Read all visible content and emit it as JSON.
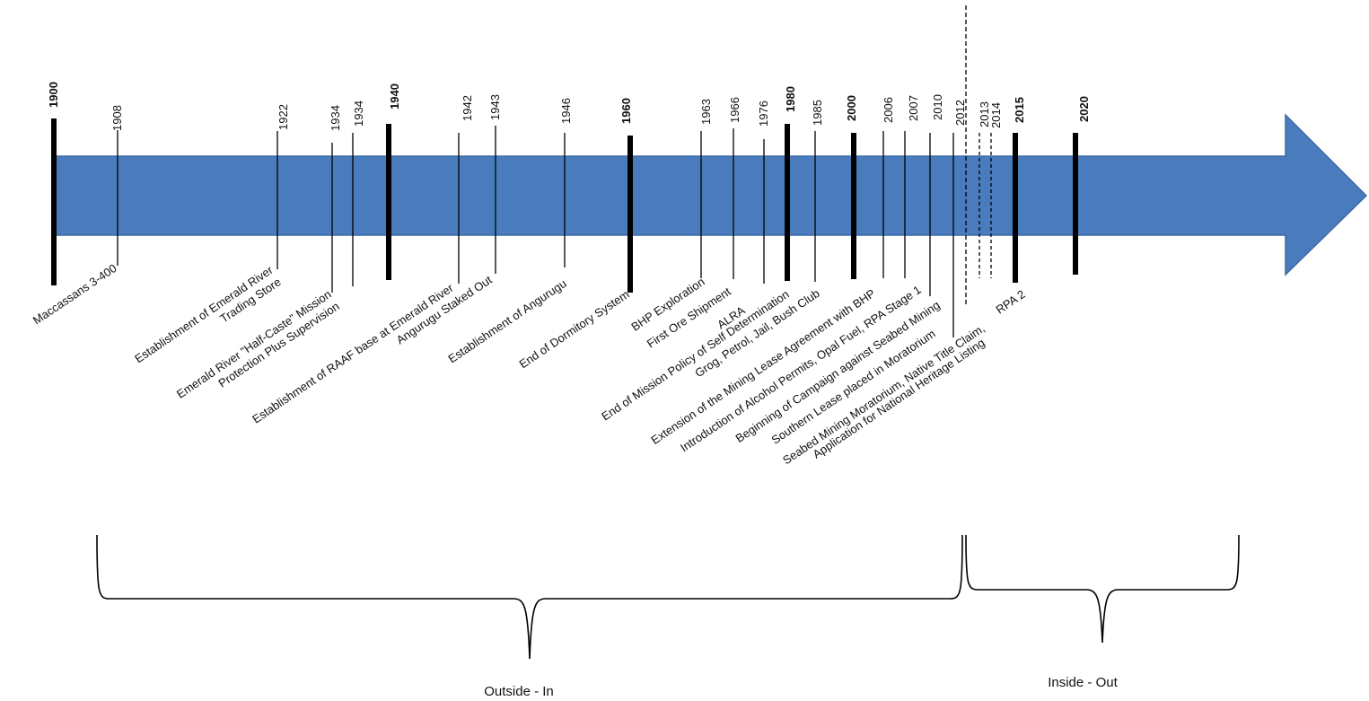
{
  "timeline": {
    "arrow_color": "#4a7cbd",
    "years": [
      {
        "year": "1900",
        "major": true
      },
      {
        "year": "1908",
        "major": false
      },
      {
        "year": "1922",
        "major": false
      },
      {
        "year": "1934",
        "major": false
      },
      {
        "year": "1934",
        "major": false
      },
      {
        "year": "1940",
        "major": true
      },
      {
        "year": "1942",
        "major": false
      },
      {
        "year": "1943",
        "major": false
      },
      {
        "year": "1946",
        "major": false
      },
      {
        "year": "1960",
        "major": true
      },
      {
        "year": "1963",
        "major": false
      },
      {
        "year": "1966",
        "major": false
      },
      {
        "year": "1976",
        "major": false
      },
      {
        "year": "1980",
        "major": true
      },
      {
        "year": "1985",
        "major": false
      },
      {
        "year": "2000",
        "major": true
      },
      {
        "year": "2006",
        "major": false
      },
      {
        "year": "2007",
        "major": false
      },
      {
        "year": "2010",
        "major": false
      },
      {
        "year": "2012",
        "major": false
      },
      {
        "year": "2013",
        "major": false
      },
      {
        "year": "2014",
        "major": false
      },
      {
        "year": "2015",
        "major": true
      },
      {
        "year": "2020",
        "major": true
      }
    ],
    "events": [
      [
        "Maccassans 3-400"
      ],
      [
        "Establishment of Emerald River",
        "Trading Store"
      ],
      [
        "Emerald River \"Half-Caste\" Mission",
        "Protection Plus Supervision"
      ],
      [
        "Establishment of RAAF base at Emerald River"
      ],
      [
        "Angurugu Staked Out"
      ],
      [
        "Establishment of Angurugu"
      ],
      [
        "End of Dormitory System"
      ],
      [
        "BHP Exploration"
      ],
      [
        "First Ore Shipment"
      ],
      [
        "ALRA"
      ],
      [
        "End of Mission Policy of Self Determination"
      ],
      [
        "Grog, Petrol, Jail, Bush Club"
      ],
      [
        "Extension of the Mining Lease Agreement with BHP"
      ],
      [
        "Introduction of Alcohol Permits, Opal Fuel, RPA Stage 1"
      ],
      [
        "Beginning of Campaign against Seabed Mining"
      ],
      [
        "Southern Lease placed in Moratorium"
      ],
      [
        "Seabed Mining Moratorium, Native Title Claim,"
      ],
      [
        "Application for National Heritage Listing"
      ],
      [
        "RPA 2"
      ]
    ],
    "eras": [
      "Outside - In",
      "Inside - Out"
    ]
  }
}
